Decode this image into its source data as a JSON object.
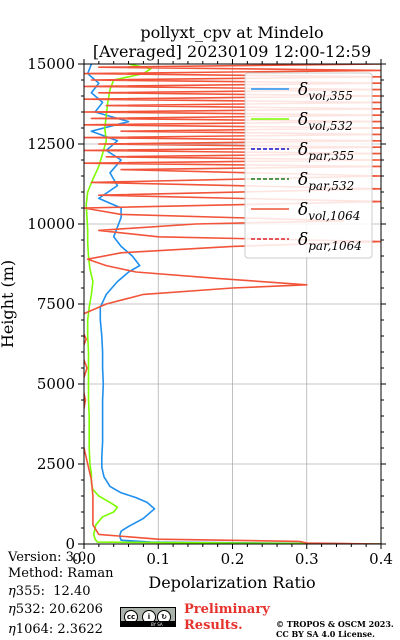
{
  "chart_data": {
    "type": "line",
    "title": "pollyxt_cpv at Mindelo",
    "subtitle": "[Averaged] 20230109 12:00-12:59",
    "xlabel": "Depolarization Ratio",
    "ylabel": "Height (m)",
    "xlim": [
      0.0,
      0.4
    ],
    "ylim": [
      0,
      15000
    ],
    "xticks": [
      "0.0",
      "0.1",
      "0.2",
      "0.3",
      "0.4"
    ],
    "yticks": [
      "0",
      "2500",
      "5000",
      "7500",
      "10000",
      "12500",
      "15000"
    ],
    "grid": true,
    "legend_position": "top-right",
    "series": [
      {
        "name": "vol,355",
        "color": "#1f8fee",
        "style": "solid",
        "points": [
          [
            0.4,
            0
          ],
          [
            0.09,
            60
          ],
          [
            0.05,
            120
          ],
          [
            0.048,
            250
          ],
          [
            0.05,
            400
          ],
          [
            0.06,
            550
          ],
          [
            0.08,
            800
          ],
          [
            0.095,
            1100
          ],
          [
            0.085,
            1300
          ],
          [
            0.07,
            1450
          ],
          [
            0.05,
            1600
          ],
          [
            0.035,
            1800
          ],
          [
            0.027,
            2100
          ],
          [
            0.024,
            2400
          ],
          [
            0.024,
            2700
          ],
          [
            0.025,
            3200
          ],
          [
            0.025,
            4000
          ],
          [
            0.025,
            4500
          ],
          [
            0.026,
            5000
          ],
          [
            0.025,
            5500
          ],
          [
            0.025,
            6000
          ],
          [
            0.024,
            6500
          ],
          [
            0.022,
            7000
          ],
          [
            0.022,
            7400
          ],
          [
            0.03,
            7800
          ],
          [
            0.045,
            8200
          ],
          [
            0.06,
            8500
          ],
          [
            0.075,
            8700
          ],
          [
            0.065,
            9000
          ],
          [
            0.05,
            9300
          ],
          [
            0.04,
            9600
          ],
          [
            0.045,
            9900
          ],
          [
            0.05,
            10200
          ],
          [
            0.05,
            10500
          ],
          [
            0.02,
            10800
          ],
          [
            0.045,
            11200
          ],
          [
            0.035,
            11600
          ],
          [
            0.05,
            12000
          ],
          [
            0.03,
            12300
          ],
          [
            0.045,
            12600
          ],
          [
            0.01,
            12900
          ],
          [
            0.06,
            13200
          ],
          [
            0.015,
            13500
          ],
          [
            0.025,
            13800
          ],
          [
            0.01,
            14100
          ],
          [
            0.02,
            14400
          ],
          [
            0.005,
            14700
          ],
          [
            0.01,
            15000
          ]
        ]
      },
      {
        "name": "vol,532",
        "color": "#7cfc00",
        "style": "solid",
        "points": [
          [
            0.4,
            0
          ],
          [
            0.018,
            60
          ],
          [
            0.015,
            150
          ],
          [
            0.013,
            300
          ],
          [
            0.016,
            600
          ],
          [
            0.025,
            850
          ],
          [
            0.04,
            1000
          ],
          [
            0.045,
            1150
          ],
          [
            0.035,
            1300
          ],
          [
            0.02,
            1500
          ],
          [
            0.012,
            1700
          ],
          [
            0.01,
            1900
          ],
          [
            0.01,
            2200
          ],
          [
            0.008,
            2500
          ],
          [
            0.007,
            3000
          ],
          [
            0.007,
            3500
          ],
          [
            0.007,
            4000
          ],
          [
            0.006,
            4500
          ],
          [
            0.006,
            5000
          ],
          [
            0.006,
            5500
          ],
          [
            0.006,
            6000
          ],
          [
            0.005,
            6500
          ],
          [
            0.005,
            7000
          ],
          [
            0.007,
            7400
          ],
          [
            0.01,
            7800
          ],
          [
            0.012,
            8200
          ],
          [
            0.008,
            8600
          ],
          [
            0.006,
            9000
          ],
          [
            0.005,
            9400
          ],
          [
            0.005,
            9800
          ],
          [
            0.004,
            10200
          ],
          [
            0.003,
            10600
          ],
          [
            0.005,
            11000
          ],
          [
            0.012,
            11400
          ],
          [
            0.02,
            11800
          ],
          [
            0.025,
            12200
          ],
          [
            0.03,
            12600
          ],
          [
            0.028,
            13000
          ],
          [
            0.03,
            13400
          ],
          [
            0.032,
            13800
          ],
          [
            0.035,
            14200
          ],
          [
            0.04,
            14500
          ],
          [
            0.08,
            14700
          ],
          [
            0.09,
            14850
          ],
          [
            0.06,
            15000
          ]
        ]
      },
      {
        "name": "par,355",
        "color": "#1010cc",
        "style": "dashed",
        "points": []
      },
      {
        "name": "par,532",
        "color": "#1a7a1a",
        "style": "dashed",
        "points": []
      },
      {
        "name": "vol,1064",
        "color": "#f2543a",
        "style": "solid",
        "points": [
          [
            0.4,
            0
          ],
          [
            0.3,
            30
          ],
          [
            0.29,
            80
          ],
          [
            0.1,
            150
          ],
          [
            0.02,
            300
          ],
          [
            0.012,
            600
          ],
          [
            0.012,
            1000
          ],
          [
            0.012,
            1500
          ],
          [
            0.01,
            2000
          ],
          [
            0.005,
            2500
          ],
          [
            0.0,
            3000
          ],
          [
            -0.005,
            3400
          ],
          [
            0.0,
            3700
          ],
          [
            -0.002,
            4000
          ],
          [
            0.002,
            4500
          ],
          [
            -0.003,
            5000
          ],
          [
            0.004,
            5500
          ],
          [
            -0.004,
            6000
          ],
          [
            0.003,
            6400
          ],
          [
            -0.005,
            6800
          ],
          [
            0.0,
            7200
          ],
          [
            0.03,
            7500
          ],
          [
            0.08,
            7800
          ],
          [
            0.2,
            8000
          ],
          [
            0.3,
            8100
          ],
          [
            0.18,
            8300
          ],
          [
            0.07,
            8500
          ],
          [
            0.03,
            8700
          ],
          [
            0.005,
            8900
          ],
          [
            0.05,
            9100
          ],
          [
            0.2,
            9300
          ],
          [
            0.4,
            9450
          ],
          [
            0.1,
            9600
          ],
          [
            0.02,
            9800
          ],
          [
            0.15,
            10000
          ],
          [
            0.35,
            10100
          ],
          [
            0.05,
            10300
          ],
          [
            0.0,
            10500
          ],
          [
            0.4,
            10700
          ],
          [
            0.02,
            10900
          ],
          [
            0.4,
            11100
          ],
          [
            0.01,
            11300
          ],
          [
            0.4,
            11500
          ],
          [
            0.05,
            11700
          ],
          [
            0.4,
            11800
          ],
          [
            0.0,
            11900
          ],
          [
            0.4,
            12000
          ],
          [
            0.03,
            12100
          ],
          [
            0.4,
            12200
          ],
          [
            0.0,
            12300
          ],
          [
            0.4,
            12400
          ],
          [
            0.02,
            12500
          ],
          [
            0.4,
            12600
          ],
          [
            0.0,
            12700
          ],
          [
            0.4,
            12800
          ],
          [
            0.05,
            12900
          ],
          [
            0.4,
            13000
          ],
          [
            0.0,
            13100
          ],
          [
            0.4,
            13200
          ],
          [
            0.01,
            13300
          ],
          [
            0.4,
            13400
          ],
          [
            0.0,
            13500
          ],
          [
            0.4,
            13600
          ],
          [
            0.03,
            13700
          ],
          [
            0.4,
            13800
          ],
          [
            0.0,
            13900
          ],
          [
            0.4,
            14000
          ],
          [
            0.02,
            14100
          ],
          [
            0.4,
            14200
          ],
          [
            0.0,
            14300
          ],
          [
            0.4,
            14400
          ],
          [
            0.01,
            14500
          ],
          [
            0.4,
            14600
          ],
          [
            0.0,
            14700
          ],
          [
            0.4,
            14800
          ],
          [
            0.02,
            14900
          ],
          [
            0.4,
            15000
          ]
        ]
      },
      {
        "name": "par,1064",
        "color": "#e0202a",
        "style": "dashed",
        "points": []
      }
    ]
  },
  "info": {
    "version": "Version: 3.0",
    "method": "Method: Raman",
    "eta355": "12.40",
    "eta532": "20.6206",
    "eta1064": "2.3622"
  },
  "footer": {
    "preliminary_line1": "Preliminary",
    "preliminary_line2": "Results.",
    "copyright_line1": "© TROPOS & OSCM 2023.",
    "copyright_line2": "CC BY SA 4.0 License.",
    "license_badge": "BY SA"
  }
}
